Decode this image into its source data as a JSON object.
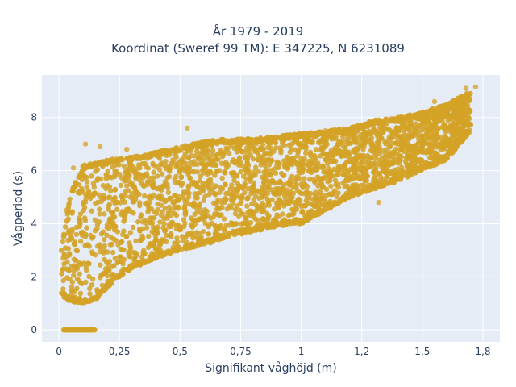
{
  "chart_data": {
    "type": "scatter",
    "title_lines": [
      "År 1979 - 2019",
      "Koordinat (Sweref 99 TM): E 347225, N 6231089"
    ],
    "xlabel": "Signifikant våghöjd (m)",
    "ylabel": "Vågperiod (s)",
    "xlim": [
      -0.07,
      1.82
    ],
    "ylim": [
      -0.45,
      9.6
    ],
    "x_ticks": [
      0,
      0.25,
      0.5,
      0.75,
      1,
      1.25,
      1.5,
      1.75
    ],
    "x_tick_labels": [
      "0",
      "0,25",
      "0,5",
      "0,75",
      "1",
      "1,2",
      "1,5",
      "1,8"
    ],
    "y_ticks": [
      0,
      2,
      4,
      6,
      8
    ],
    "y_tick_labels": [
      "0",
      "2",
      "4",
      "6",
      "8"
    ],
    "grid": true,
    "legend": "none",
    "colors": {
      "marker": "#d4a224",
      "plot_bg": "#e5ecf6",
      "grid": "#ffffff",
      "text": "#2a3f5f"
    },
    "zero_period_segment": {
      "x_start": 0.02,
      "x_end": 0.15,
      "y": 0
    },
    "envelope": {
      "x": [
        0.01,
        0.05,
        0.1,
        0.15,
        0.2,
        0.25,
        0.3,
        0.4,
        0.5,
        0.6,
        0.7,
        0.8,
        0.9,
        1.0,
        1.1,
        1.2,
        1.3,
        1.4,
        1.5,
        1.6,
        1.7
      ],
      "y_lower": [
        1.3,
        1.05,
        1.0,
        1.1,
        1.6,
        2.0,
        2.3,
        2.7,
        3.0,
        3.2,
        3.5,
        3.7,
        3.9,
        4.0,
        4.5,
        5.0,
        5.3,
        5.6,
        6.0,
        6.4,
        7.5
      ],
      "y_upper": [
        3.0,
        5.2,
        6.2,
        6.3,
        6.4,
        6.5,
        6.5,
        6.7,
        6.9,
        7.1,
        7.2,
        7.2,
        7.3,
        7.4,
        7.5,
        7.6,
        7.9,
        8.0,
        8.2,
        8.5,
        9.0
      ]
    },
    "outliers": [
      {
        "x": 0.02,
        "y": 3.6
      },
      {
        "x": 0.03,
        "y": 4.5
      },
      {
        "x": 0.06,
        "y": 6.1
      },
      {
        "x": 0.11,
        "y": 7.0
      },
      {
        "x": 0.17,
        "y": 6.9
      },
      {
        "x": 0.28,
        "y": 6.8
      },
      {
        "x": 0.53,
        "y": 7.6
      },
      {
        "x": 0.7,
        "y": 6.2
      },
      {
        "x": 0.92,
        "y": 3.95
      },
      {
        "x": 1.1,
        "y": 7.5
      },
      {
        "x": 1.22,
        "y": 5.2
      },
      {
        "x": 1.32,
        "y": 4.8
      },
      {
        "x": 1.4,
        "y": 8.0
      },
      {
        "x": 1.55,
        "y": 8.6
      },
      {
        "x": 1.72,
        "y": 9.15
      },
      {
        "x": 1.68,
        "y": 9.1
      },
      {
        "x": 0.3,
        "y": 2.4
      }
    ]
  }
}
